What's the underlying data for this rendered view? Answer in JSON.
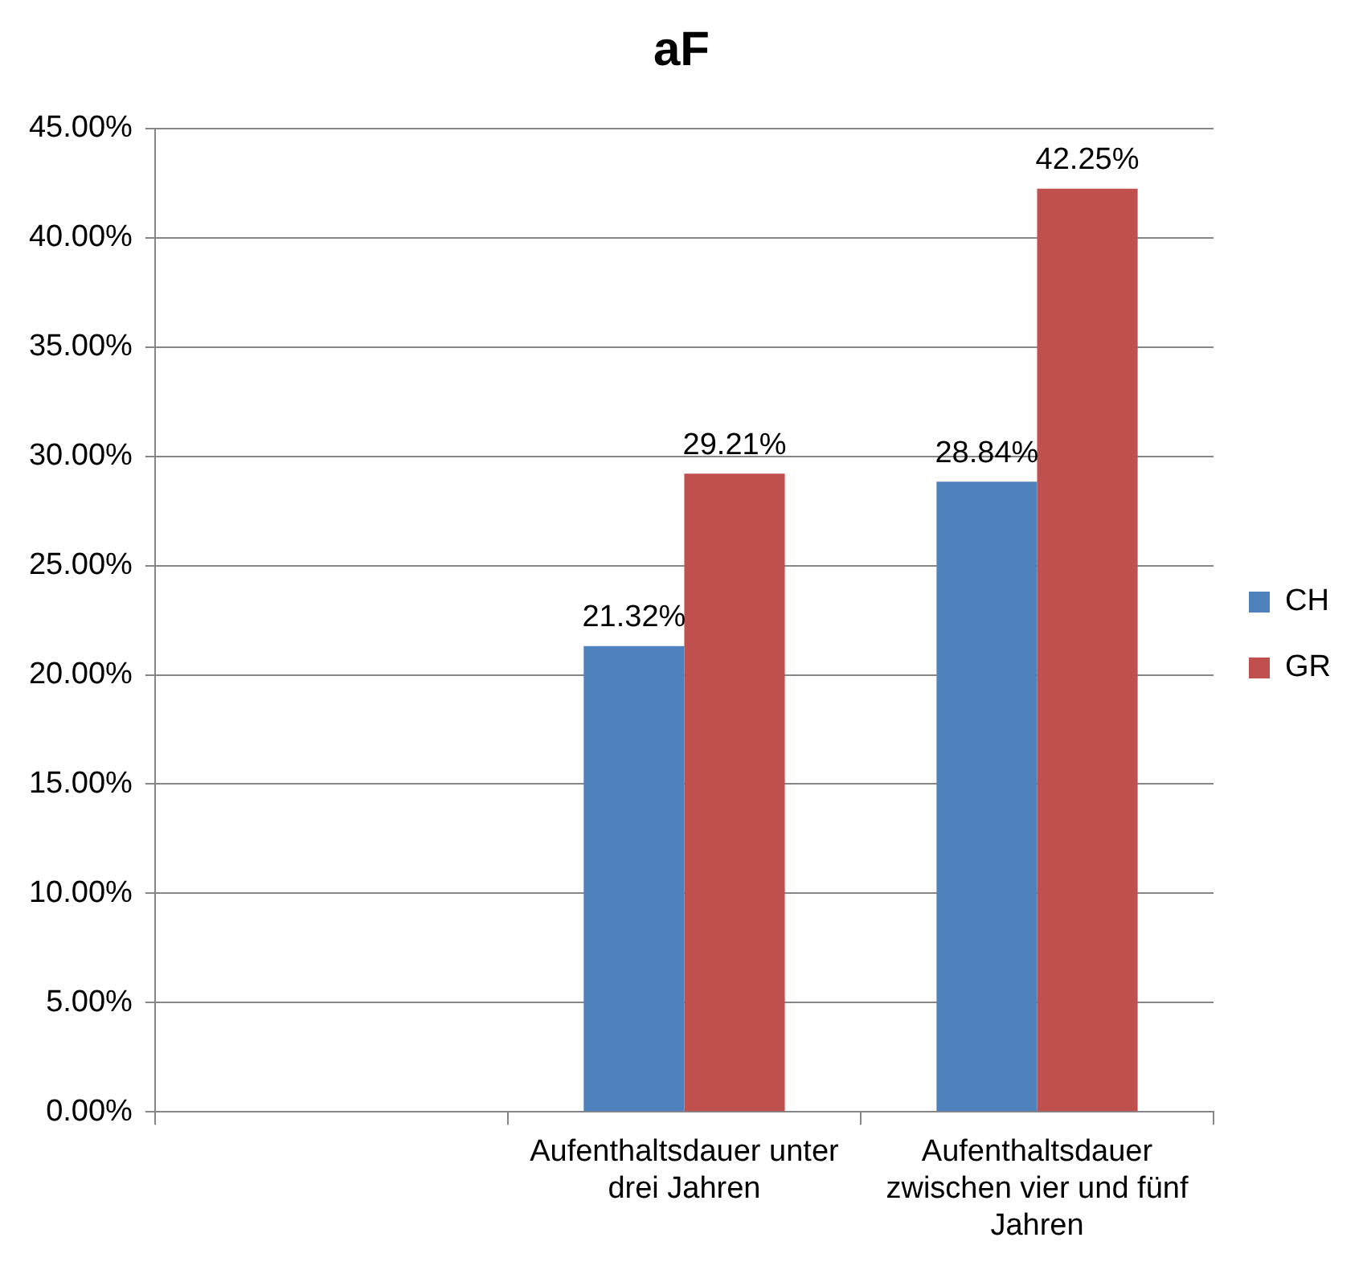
{
  "chart_data": {
    "type": "bar",
    "title": "aF",
    "categories": [
      null,
      "Aufenthaltsdauer unter drei Jahren",
      "Aufenthaltsdauer zwischen vier und fünf Jahren"
    ],
    "series": [
      {
        "name": "CH",
        "color": "#4f81bd",
        "values": [
          null,
          21.32,
          28.84
        ],
        "value_labels": [
          null,
          "21.32%",
          "28.84%"
        ]
      },
      {
        "name": "GR",
        "color": "#c0504d",
        "values": [
          null,
          29.21,
          42.25
        ],
        "value_labels": [
          null,
          "29.21%",
          "42.25%"
        ]
      }
    ],
    "ylim": [
      0,
      45
    ],
    "yticks": [
      {
        "value": 0,
        "label": "0.00%"
      },
      {
        "value": 5,
        "label": "5.00%"
      },
      {
        "value": 10,
        "label": "10.00%"
      },
      {
        "value": 15,
        "label": "15.00%"
      },
      {
        "value": 20,
        "label": "20.00%"
      },
      {
        "value": 25,
        "label": "25.00%"
      },
      {
        "value": 30,
        "label": "30.00%"
      },
      {
        "value": 35,
        "label": "35.00%"
      },
      {
        "value": 40,
        "label": "40.00%"
      },
      {
        "value": 45,
        "label": "45.00%"
      }
    ],
    "grid": "y",
    "legend": "right"
  }
}
